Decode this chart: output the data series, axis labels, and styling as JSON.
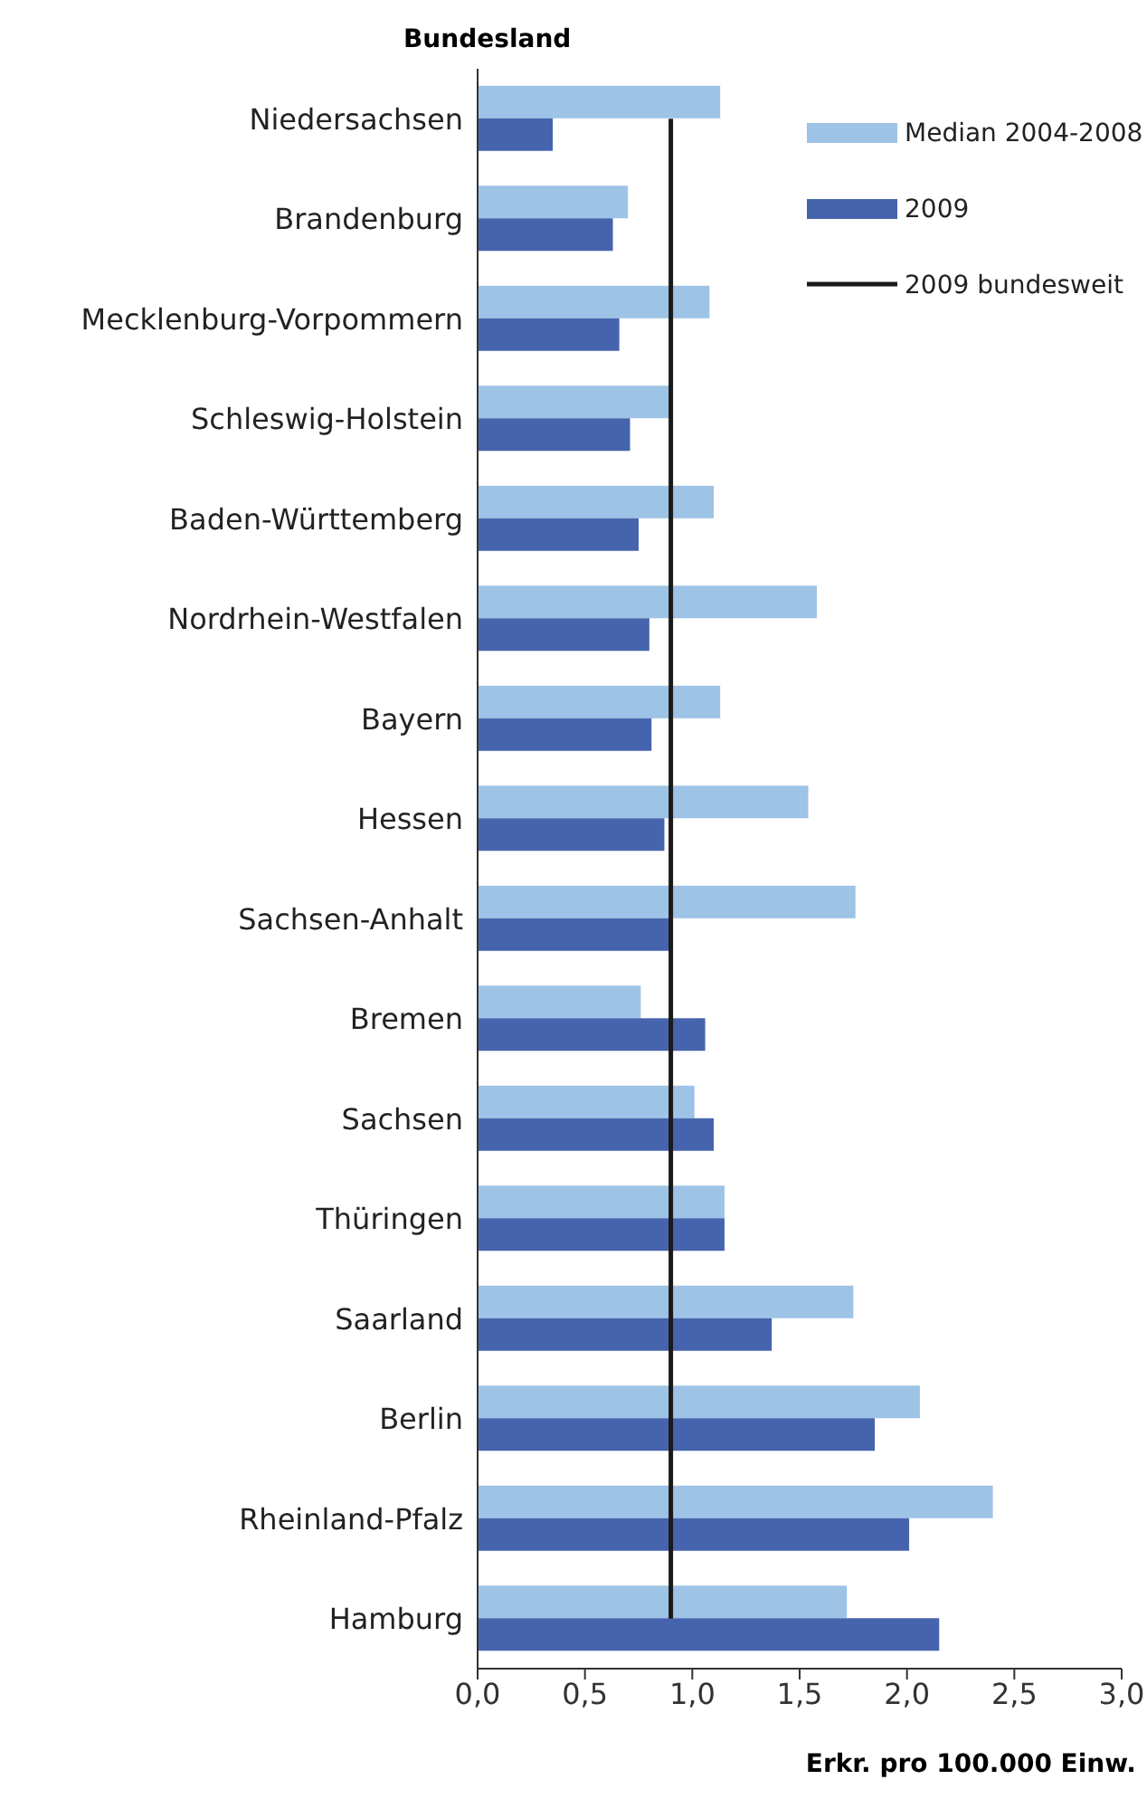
{
  "chart_data": {
    "type": "bar",
    "orientation": "horizontal",
    "ylabel": "Bundesland",
    "xlabel": "Erkr. pro 100.000 Einw.",
    "categories": [
      "Niedersachsen",
      "Brandenburg",
      "Mecklenburg-Vorpommern",
      "Schleswig-Holstein",
      "Baden-Württemberg",
      "Nordrhein-Westfalen",
      "Bayern",
      "Hessen",
      "Sachsen-Anhalt",
      "Bremen",
      "Sachsen",
      "Thüringen",
      "Saarland",
      "Berlin",
      "Rheinland-Pfalz",
      "Hamburg"
    ],
    "series": [
      {
        "name": "Median 2004-2008",
        "color": "#9dc3e6",
        "values": [
          1.13,
          0.7,
          1.08,
          0.9,
          1.1,
          1.58,
          1.13,
          1.54,
          1.76,
          0.76,
          1.01,
          1.15,
          1.75,
          2.06,
          2.4,
          1.72
        ]
      },
      {
        "name": "2009",
        "color": "#4664ae",
        "values": [
          0.35,
          0.63,
          0.66,
          0.71,
          0.75,
          0.8,
          0.81,
          0.87,
          0.9,
          1.06,
          1.1,
          1.15,
          1.37,
          1.85,
          2.01,
          2.15
        ]
      },
      {
        "name": "2009 bundesweit",
        "type": "line",
        "color": "#1a1a1a",
        "values": [
          0.9,
          0.9,
          0.9,
          0.9,
          0.9,
          0.9,
          0.9,
          0.9,
          0.9,
          0.9,
          0.9,
          0.9,
          0.9,
          0.9,
          0.9,
          0.9
        ]
      }
    ],
    "xlim": [
      0,
      3
    ],
    "xticks": [
      {
        "value": 0,
        "label": "0,0"
      },
      {
        "value": 0.5,
        "label": "0,5"
      },
      {
        "value": 1,
        "label": "1,0"
      },
      {
        "value": 1.5,
        "label": "1,5"
      },
      {
        "value": 2,
        "label": "2,0"
      },
      {
        "value": 2.5,
        "label": "2,5"
      },
      {
        "value": 3,
        "label": "3,0"
      }
    ],
    "marker": "none",
    "legend": "top right",
    "grid": false
  }
}
